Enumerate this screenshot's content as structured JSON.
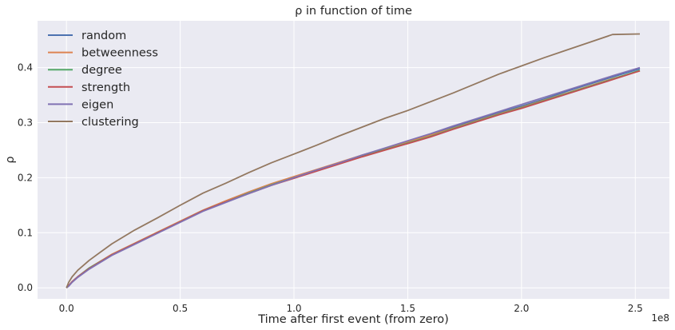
{
  "chart_data": {
    "type": "line",
    "title": "ρ in function of time",
    "xlabel": "Time after first event (from zero)",
    "ylabel": "ρ",
    "x_offset_label": "1e8",
    "xlim": [
      -0.127,
      2.65
    ],
    "ylim": [
      -0.02,
      0.485
    ],
    "x_ticks": [
      0.0,
      0.5,
      1.0,
      1.5,
      2.0,
      2.5
    ],
    "x_tick_labels": [
      "0.0",
      "0.5",
      "1.0",
      "1.5",
      "2.0",
      "2.5"
    ],
    "y_ticks": [
      0.0,
      0.1,
      0.2,
      0.3,
      0.4
    ],
    "y_tick_labels": [
      "0.0",
      "0.1",
      "0.2",
      "0.3",
      "0.4"
    ],
    "grid": true,
    "legend_position": "top-left",
    "x": [
      0.0,
      0.01,
      0.025,
      0.05,
      0.1,
      0.2,
      0.3,
      0.4,
      0.5,
      0.6,
      0.7,
      0.8,
      0.9,
      1.0,
      1.1,
      1.2,
      1.3,
      1.4,
      1.5,
      1.6,
      1.7,
      1.8,
      1.9,
      2.0,
      2.1,
      2.2,
      2.3,
      2.4,
      2.52
    ],
    "series": [
      {
        "name": "random",
        "color": "#4c72b0",
        "values": [
          0.0,
          0.004,
          0.011,
          0.02,
          0.035,
          0.06,
          0.08,
          0.1,
          0.12,
          0.14,
          0.156,
          0.172,
          0.187,
          0.2,
          0.214,
          0.227,
          0.241,
          0.253,
          0.265,
          0.278,
          0.292,
          0.305,
          0.318,
          0.33,
          0.343,
          0.357,
          0.37,
          0.383,
          0.398
        ]
      },
      {
        "name": "betweenness",
        "color": "#dd8452",
        "values": [
          0.0,
          0.004,
          0.011,
          0.02,
          0.036,
          0.061,
          0.081,
          0.101,
          0.121,
          0.141,
          0.158,
          0.174,
          0.189,
          0.202,
          0.215,
          0.228,
          0.241,
          0.253,
          0.265,
          0.277,
          0.29,
          0.303,
          0.316,
          0.328,
          0.341,
          0.354,
          0.367,
          0.38,
          0.394
        ]
      },
      {
        "name": "degree",
        "color": "#55a868",
        "values": [
          0.0,
          0.004,
          0.011,
          0.02,
          0.036,
          0.06,
          0.08,
          0.1,
          0.12,
          0.14,
          0.156,
          0.172,
          0.187,
          0.2,
          0.213,
          0.226,
          0.239,
          0.251,
          0.263,
          0.275,
          0.289,
          0.302,
          0.315,
          0.327,
          0.34,
          0.353,
          0.366,
          0.379,
          0.395
        ]
      },
      {
        "name": "strength",
        "color": "#c44e52",
        "values": [
          0.0,
          0.004,
          0.011,
          0.02,
          0.035,
          0.06,
          0.08,
          0.1,
          0.12,
          0.14,
          0.156,
          0.171,
          0.186,
          0.199,
          0.212,
          0.225,
          0.238,
          0.25,
          0.262,
          0.274,
          0.288,
          0.301,
          0.314,
          0.326,
          0.339,
          0.352,
          0.365,
          0.378,
          0.394
        ]
      },
      {
        "name": "eigen",
        "color": "#8172b3",
        "values": [
          0.0,
          0.003,
          0.01,
          0.019,
          0.034,
          0.059,
          0.079,
          0.099,
          0.119,
          0.139,
          0.155,
          0.171,
          0.186,
          0.2,
          0.214,
          0.227,
          0.241,
          0.254,
          0.267,
          0.28,
          0.294,
          0.307,
          0.32,
          0.333,
          0.346,
          0.359,
          0.372,
          0.385,
          0.4
        ]
      },
      {
        "name": "clustering",
        "color": "#937860",
        "values": [
          0.0,
          0.01,
          0.02,
          0.032,
          0.05,
          0.08,
          0.105,
          0.127,
          0.15,
          0.172,
          0.19,
          0.209,
          0.227,
          0.243,
          0.259,
          0.276,
          0.292,
          0.308,
          0.322,
          0.338,
          0.354,
          0.371,
          0.388,
          0.403,
          0.418,
          0.432,
          0.446,
          0.46,
          0.461
        ]
      }
    ]
  }
}
